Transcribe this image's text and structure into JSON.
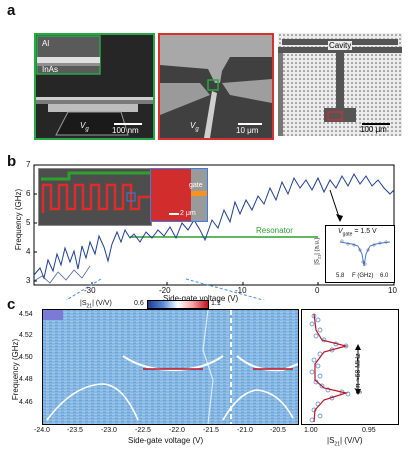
{
  "panel_a": {
    "letter": "a",
    "img1": {
      "label_al": "Al",
      "label_inas": "InAs",
      "gate": "V",
      "gate_sub": "g",
      "scale": "100 nm",
      "border": "#27a844"
    },
    "img2": {
      "gate": "V",
      "gate_sub": "g",
      "scale": "10 μm",
      "border": "#d9302f"
    },
    "img3": {
      "label_cavity": "Cavity",
      "scale": "100 μm"
    }
  },
  "panel_b": {
    "letter": "b",
    "ylabel": "Frequency (GHz)",
    "xlabel": "Side-gate voltage (V)",
    "yticks": [
      "3",
      "4",
      "5",
      "6",
      "7"
    ],
    "xticks": [
      "-30",
      "-20",
      "-10",
      "0",
      "10"
    ],
    "resonator_label": "Resonator",
    "inset_gate_label": "gate",
    "inset_scale": "2 μm",
    "sub_inset": {
      "title_v": "V",
      "title_sub": "gate",
      "title_val": " = 1.5 V",
      "ylabel": "|S",
      "ylabel_sub": "21",
      "ylabel_end": "| (a.u.)",
      "xticks": [
        "5.8",
        "F (GHz)",
        "6.0"
      ]
    },
    "colors": {
      "trace": "#1f3f8f",
      "resonator": "#2ea02e",
      "inset_border_orange": "#f7941d"
    }
  },
  "panel_c": {
    "letter": "c",
    "colorbar_label": "|S",
    "colorbar_sub": "21",
    "colorbar_unit": "| (V/V)",
    "colorbar_min": "0.6",
    "colorbar_max": "1.1",
    "ylabel": "Frequency (GHz)",
    "yticks": [
      "4.54",
      "4.52",
      "4.50",
      "4.48",
      "4.46"
    ],
    "xticks": [
      "-24.0",
      "-23.5",
      "-23.0",
      "-22.5",
      "-22.0",
      "-21.5",
      "-21.0",
      "-20.5"
    ],
    "xlabel": "Side-gate voltage (V)",
    "side_xticks": [
      "1.00",
      "0.95"
    ],
    "side_xlabel": "|S",
    "side_xlabel_sub": "21",
    "side_xlabel_unit": "| (V/V)",
    "coupling_label": "g/π ≈68 MHz"
  }
}
